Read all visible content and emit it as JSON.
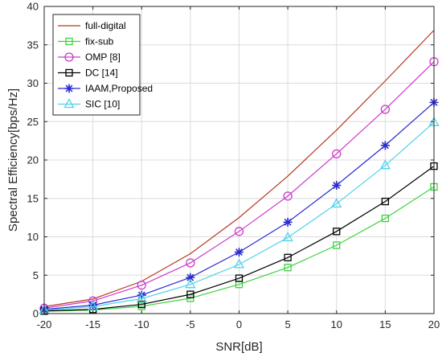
{
  "chart_data": {
    "type": "line",
    "title": "",
    "xlabel": "SNR[dB]",
    "ylabel": "Spectral Efficiency[bps/Hz]",
    "xlim": [
      -20,
      20
    ],
    "ylim": [
      0,
      40
    ],
    "x_ticks": [
      -20,
      -15,
      -10,
      -5,
      0,
      5,
      10,
      15,
      20
    ],
    "y_ticks": [
      0,
      5,
      10,
      15,
      20,
      25,
      30,
      35,
      40
    ],
    "grid": true,
    "legend_position": "top-left",
    "x": [
      -20,
      -15,
      -10,
      -5,
      0,
      5,
      10,
      15,
      20
    ],
    "series": [
      {
        "name": "full-digital",
        "color": "#b5391e",
        "marker": "none",
        "values": [
          0.9,
          1.9,
          4.2,
          7.8,
          12.5,
          17.9,
          23.9,
          30.3,
          36.9
        ]
      },
      {
        "name": "fix-sub",
        "color": "#3fd13f",
        "marker": "square",
        "values": [
          0.3,
          0.45,
          0.95,
          2.0,
          3.8,
          6.0,
          8.9,
          12.4,
          16.5
        ]
      },
      {
        "name": "OMP [8]",
        "color": "#cc3acc",
        "marker": "circle",
        "values": [
          0.7,
          1.65,
          3.7,
          6.6,
          10.7,
          15.3,
          20.8,
          26.6,
          32.8
        ]
      },
      {
        "name": "DC [14]",
        "color": "#000000",
        "marker": "square",
        "values": [
          0.35,
          0.55,
          1.2,
          2.5,
          4.6,
          7.3,
          10.7,
          14.6,
          19.2
        ]
      },
      {
        "name": "IAAM,Proposed",
        "color": "#2b2bd1",
        "marker": "star",
        "values": [
          0.55,
          1.1,
          2.4,
          4.7,
          8.0,
          11.9,
          16.7,
          21.9,
          27.5
        ]
      },
      {
        "name": "SIC [10]",
        "color": "#4fd3e8",
        "marker": "triangle",
        "values": [
          0.45,
          0.9,
          1.95,
          3.8,
          6.4,
          9.9,
          14.3,
          19.3,
          24.9
        ]
      }
    ]
  }
}
